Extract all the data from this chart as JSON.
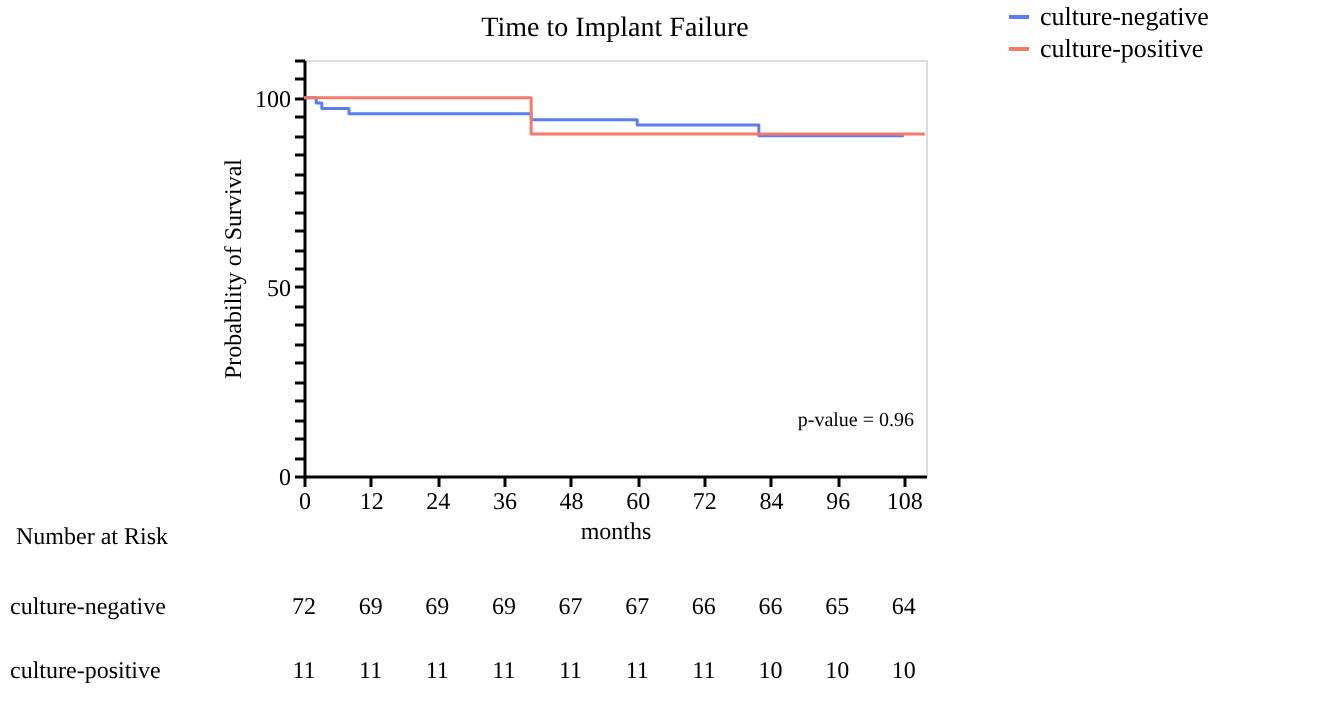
{
  "chart_data": {
    "type": "step",
    "title": "Time to Implant Failure",
    "xlabel": "months",
    "ylabel": "Probability of Survival",
    "series": [
      {
        "name": "culture-negative",
        "color": "#5b7cf5",
        "x": [
          0,
          2.2,
          3.2,
          8.1,
          40.9,
          60,
          81.9,
          108
        ],
        "values": [
          100,
          98.6,
          97.2,
          95.8,
          94.2,
          92.8,
          90,
          90
        ]
      },
      {
        "name": "culture-positive",
        "color": "#f47b6b",
        "x": [
          0,
          40.9,
          111.8
        ],
        "values": [
          100,
          90.4,
          90.4
        ]
      }
    ],
    "xlim": [
      0,
      112
    ],
    "xticks": [
      0,
      12,
      24,
      36,
      48,
      60,
      72,
      84,
      96,
      108
    ],
    "ylim": [
      0,
      110
    ],
    "yticks": [
      0,
      {
        "value": 5,
        "label": null
      },
      {
        "value": 10,
        "label": null
      },
      {
        "value": 15,
        "label": null
      },
      {
        "value": 20,
        "label": null
      },
      {
        "value": 25,
        "label": null
      },
      {
        "value": 30,
        "label": null
      },
      {
        "value": 35,
        "label": null
      },
      {
        "value": 40,
        "label": null
      },
      {
        "value": 45,
        "label": null
      },
      50,
      {
        "value": 55,
        "label": null
      },
      {
        "value": 60,
        "label": null
      },
      {
        "value": 65,
        "label": null
      },
      {
        "value": 70,
        "label": null
      },
      {
        "value": 75,
        "label": null
      },
      {
        "value": 80,
        "label": null
      },
      {
        "value": 85,
        "label": null
      },
      {
        "value": 90,
        "label": null
      },
      {
        "value": 95,
        "label": null
      },
      100,
      {
        "value": 105,
        "label": null
      },
      {
        "value": 110,
        "label": null
      }
    ],
    "grid": false,
    "legend": "top right",
    "annotations": [
      "p-value = 0.96",
      "Number at Risk",
      "culture-negative",
      "72",
      "69",
      "69",
      "69",
      "67",
      "67",
      "66",
      "66",
      "65",
      "64",
      "culture-positive",
      "11",
      "11",
      "11",
      "11",
      "11",
      "11",
      "11",
      "10",
      "10",
      "10"
    ]
  }
}
